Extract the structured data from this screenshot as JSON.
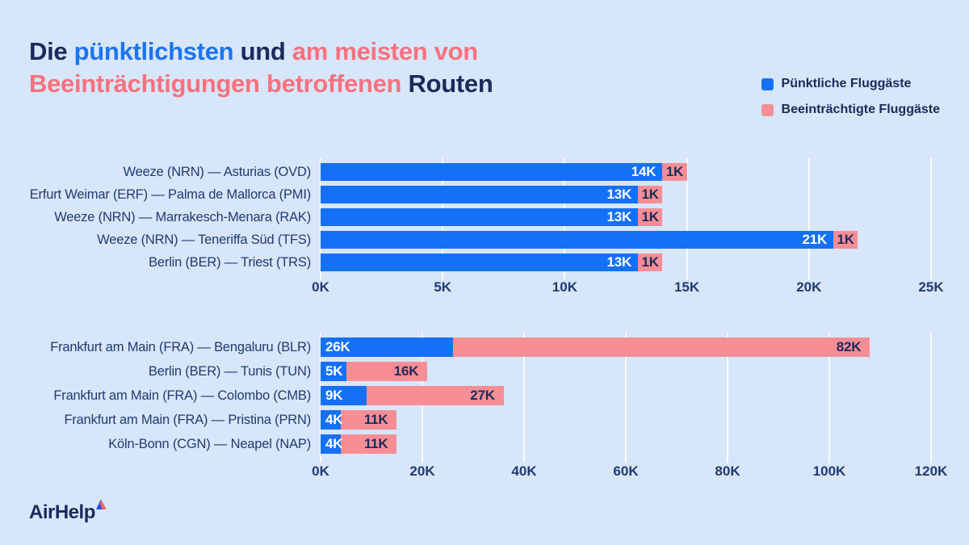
{
  "title": {
    "segments": [
      {
        "text": "Die ",
        "role": "navy"
      },
      {
        "text": "pünktlichsten",
        "role": "blue"
      },
      {
        "text": " und ",
        "role": "navy"
      },
      {
        "text": "am meisten von Beeinträchtigungen betroffenen",
        "role": "pink"
      },
      {
        "text": " Routen",
        "role": "navy"
      }
    ]
  },
  "legend": [
    {
      "label": "Pünktliche Fluggäste",
      "color": "#1471f5"
    },
    {
      "label": "Beeinträchtigte Fluggäste",
      "color": "#f78e96"
    }
  ],
  "chart_data": [
    {
      "type": "bar",
      "orientation": "horizontal",
      "stacked": true,
      "grid": true,
      "unit": "thousand passengers",
      "categories": [
        "Weeze (NRN) — Asturias (OVD)",
        "Erfurt Weimar (ERF) — Palma de Mallorca (PMI)",
        "Weeze (NRN) — Marrakesch-Menara (RAK)",
        "Weeze (NRN) — Teneriffa Süd (TFS)",
        "Berlin (BER) — Triest (TRS)"
      ],
      "series": [
        {
          "name": "Pünktliche Fluggäste",
          "color": "#1471f5",
          "values": [
            14,
            13,
            13,
            21,
            13
          ],
          "labels": [
            "14K",
            "13K",
            "13K",
            "21K",
            "13K"
          ]
        },
        {
          "name": "Beeinträchtigte Fluggäste",
          "color": "#f78e96",
          "values": [
            1,
            1,
            1,
            1,
            1
          ],
          "labels": [
            "1K",
            "1K",
            "1K",
            "1K",
            "1K"
          ]
        }
      ],
      "xlim": [
        0,
        25
      ],
      "tick_values": [
        0,
        5,
        10,
        15,
        20,
        25
      ],
      "tick_labels": [
        "0K",
        "5K",
        "10K",
        "15K",
        "20K",
        "25K"
      ]
    },
    {
      "type": "bar",
      "orientation": "horizontal",
      "stacked": true,
      "grid": true,
      "unit": "thousand passengers",
      "categories": [
        "Frankfurt am Main (FRA) — Bengaluru (BLR)",
        "Berlin (BER) — Tunis (TUN)",
        "Frankfurt am Main (FRA) — Colombo (CMB)",
        "Frankfurt am Main (FRA) — Pristina (PRN)",
        "Köln-Bonn (CGN) — Neapel (NAP)"
      ],
      "series": [
        {
          "name": "Pünktliche Fluggäste",
          "color": "#1471f5",
          "values": [
            26,
            5,
            9,
            4,
            4
          ],
          "labels": [
            "26K",
            "5K",
            "9K",
            "4K",
            "4K"
          ]
        },
        {
          "name": "Beeinträchtigte Fluggäste",
          "color": "#f78e96",
          "values": [
            82,
            16,
            27,
            11,
            11
          ],
          "labels": [
            "82K",
            "16K",
            "27K",
            "11K",
            "11K"
          ]
        }
      ],
      "xlim": [
        0,
        120
      ],
      "tick_values": [
        0,
        20,
        40,
        60,
        80,
        100,
        120
      ],
      "tick_labels": [
        "0K",
        "20K",
        "40K",
        "60K",
        "80K",
        "100K",
        "120K"
      ]
    }
  ],
  "logo": {
    "text": "AirHelp"
  },
  "colors": {
    "background": "#d7e6fa",
    "title_navy": "#1b2a5b",
    "title_blue": "#1a75f5",
    "title_pink": "#f8717d",
    "bar_blue": "#1471f5",
    "bar_pink": "#f78e96",
    "axis_text": "#223a72",
    "gridline": "#ffffff",
    "logo_mark_blue": "#2f4fe0",
    "logo_mark_red": "#f4636e"
  }
}
